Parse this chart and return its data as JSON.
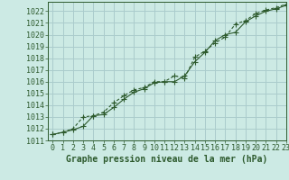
{
  "title": "Graphe pression niveau de la mer (hPa)",
  "bg_color": "#cceae4",
  "grid_color": "#aacccc",
  "line_color": "#2d5a2d",
  "xlim": [
    -0.5,
    23
  ],
  "ylim": [
    1011,
    1022.8
  ],
  "xticks": [
    0,
    1,
    2,
    3,
    4,
    5,
    6,
    7,
    8,
    9,
    10,
    11,
    12,
    13,
    14,
    15,
    16,
    17,
    18,
    19,
    20,
    21,
    22,
    23
  ],
  "yticks": [
    1011,
    1012,
    1013,
    1014,
    1015,
    1016,
    1017,
    1018,
    1019,
    1020,
    1021,
    1022
  ],
  "line1_x": [
    0,
    1,
    2,
    3,
    4,
    5,
    6,
    7,
    8,
    9,
    10,
    11,
    12,
    13,
    14,
    15,
    16,
    17,
    18,
    19,
    20,
    21,
    22,
    23
  ],
  "line1_y": [
    1011.5,
    1011.7,
    1011.9,
    1012.2,
    1013.1,
    1013.2,
    1013.8,
    1014.5,
    1015.1,
    1015.4,
    1015.9,
    1016.0,
    1016.0,
    1016.5,
    1017.7,
    1018.5,
    1019.5,
    1020.0,
    1020.2,
    1021.1,
    1021.6,
    1022.0,
    1022.2,
    1022.5
  ],
  "line2_x": [
    0,
    1,
    2,
    3,
    4,
    5,
    6,
    7,
    8,
    9,
    10,
    11,
    12,
    13,
    14,
    15,
    16,
    17,
    18,
    19,
    20,
    21,
    22,
    23
  ],
  "line2_y": [
    1011.5,
    1011.7,
    1012.0,
    1013.0,
    1013.1,
    1013.4,
    1014.2,
    1014.8,
    1015.3,
    1015.5,
    1016.0,
    1016.0,
    1016.5,
    1016.3,
    1018.1,
    1018.6,
    1019.3,
    1019.8,
    1020.9,
    1021.2,
    1021.8,
    1022.1,
    1022.3,
    1022.6
  ],
  "tick_fontsize": 6.0,
  "title_fontsize": 7.0
}
